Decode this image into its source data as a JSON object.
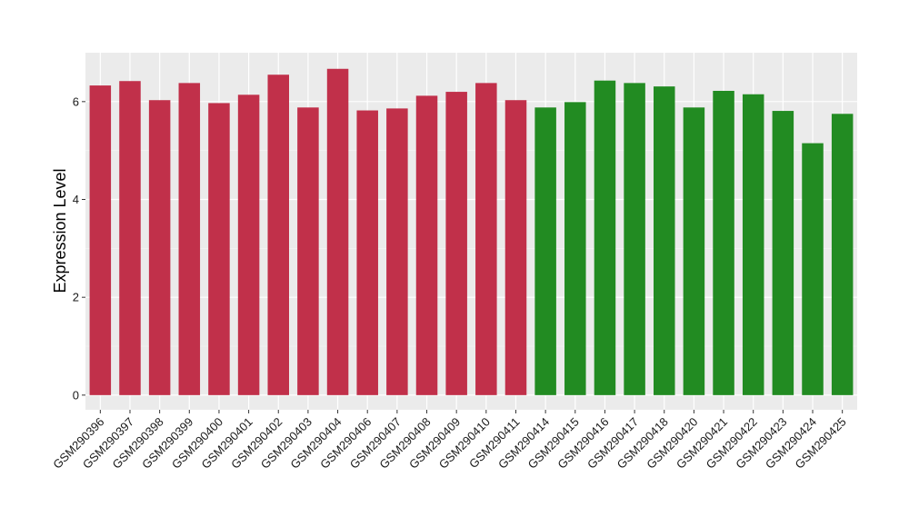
{
  "chart_data": {
    "type": "bar",
    "title": "",
    "xlabel": "",
    "ylabel": "Expression Level",
    "ylim": [
      -0.3,
      7.0
    ],
    "yticks": [
      0,
      2,
      4,
      6
    ],
    "grid": true,
    "legend": "none",
    "panel_background": "#ebebeb",
    "categories": [
      "GSM290396",
      "GSM290397",
      "GSM290398",
      "GSM290399",
      "GSM290400",
      "GSM290401",
      "GSM290402",
      "GSM290403",
      "GSM290404",
      "GSM290406",
      "GSM290407",
      "GSM290408",
      "GSM290409",
      "GSM290410",
      "GSM290411",
      "GSM290414",
      "GSM290415",
      "GSM290416",
      "GSM290417",
      "GSM290418",
      "GSM290420",
      "GSM290421",
      "GSM290422",
      "GSM290423",
      "GSM290424",
      "GSM290425"
    ],
    "values": [
      6.33,
      6.42,
      6.03,
      6.38,
      5.97,
      6.14,
      6.55,
      5.88,
      6.67,
      5.82,
      5.86,
      6.12,
      6.2,
      6.38,
      6.03,
      5.88,
      5.99,
      6.43,
      6.38,
      6.31,
      5.88,
      6.22,
      6.15,
      5.81,
      5.15,
      5.75
    ],
    "colors": [
      "#c1304a",
      "#c1304a",
      "#c1304a",
      "#c1304a",
      "#c1304a",
      "#c1304a",
      "#c1304a",
      "#c1304a",
      "#c1304a",
      "#c1304a",
      "#c1304a",
      "#c1304a",
      "#c1304a",
      "#c1304a",
      "#c1304a",
      "#228b22",
      "#228b22",
      "#228b22",
      "#228b22",
      "#228b22",
      "#228b22",
      "#228b22",
      "#228b22",
      "#228b22",
      "#228b22",
      "#228b22"
    ]
  }
}
